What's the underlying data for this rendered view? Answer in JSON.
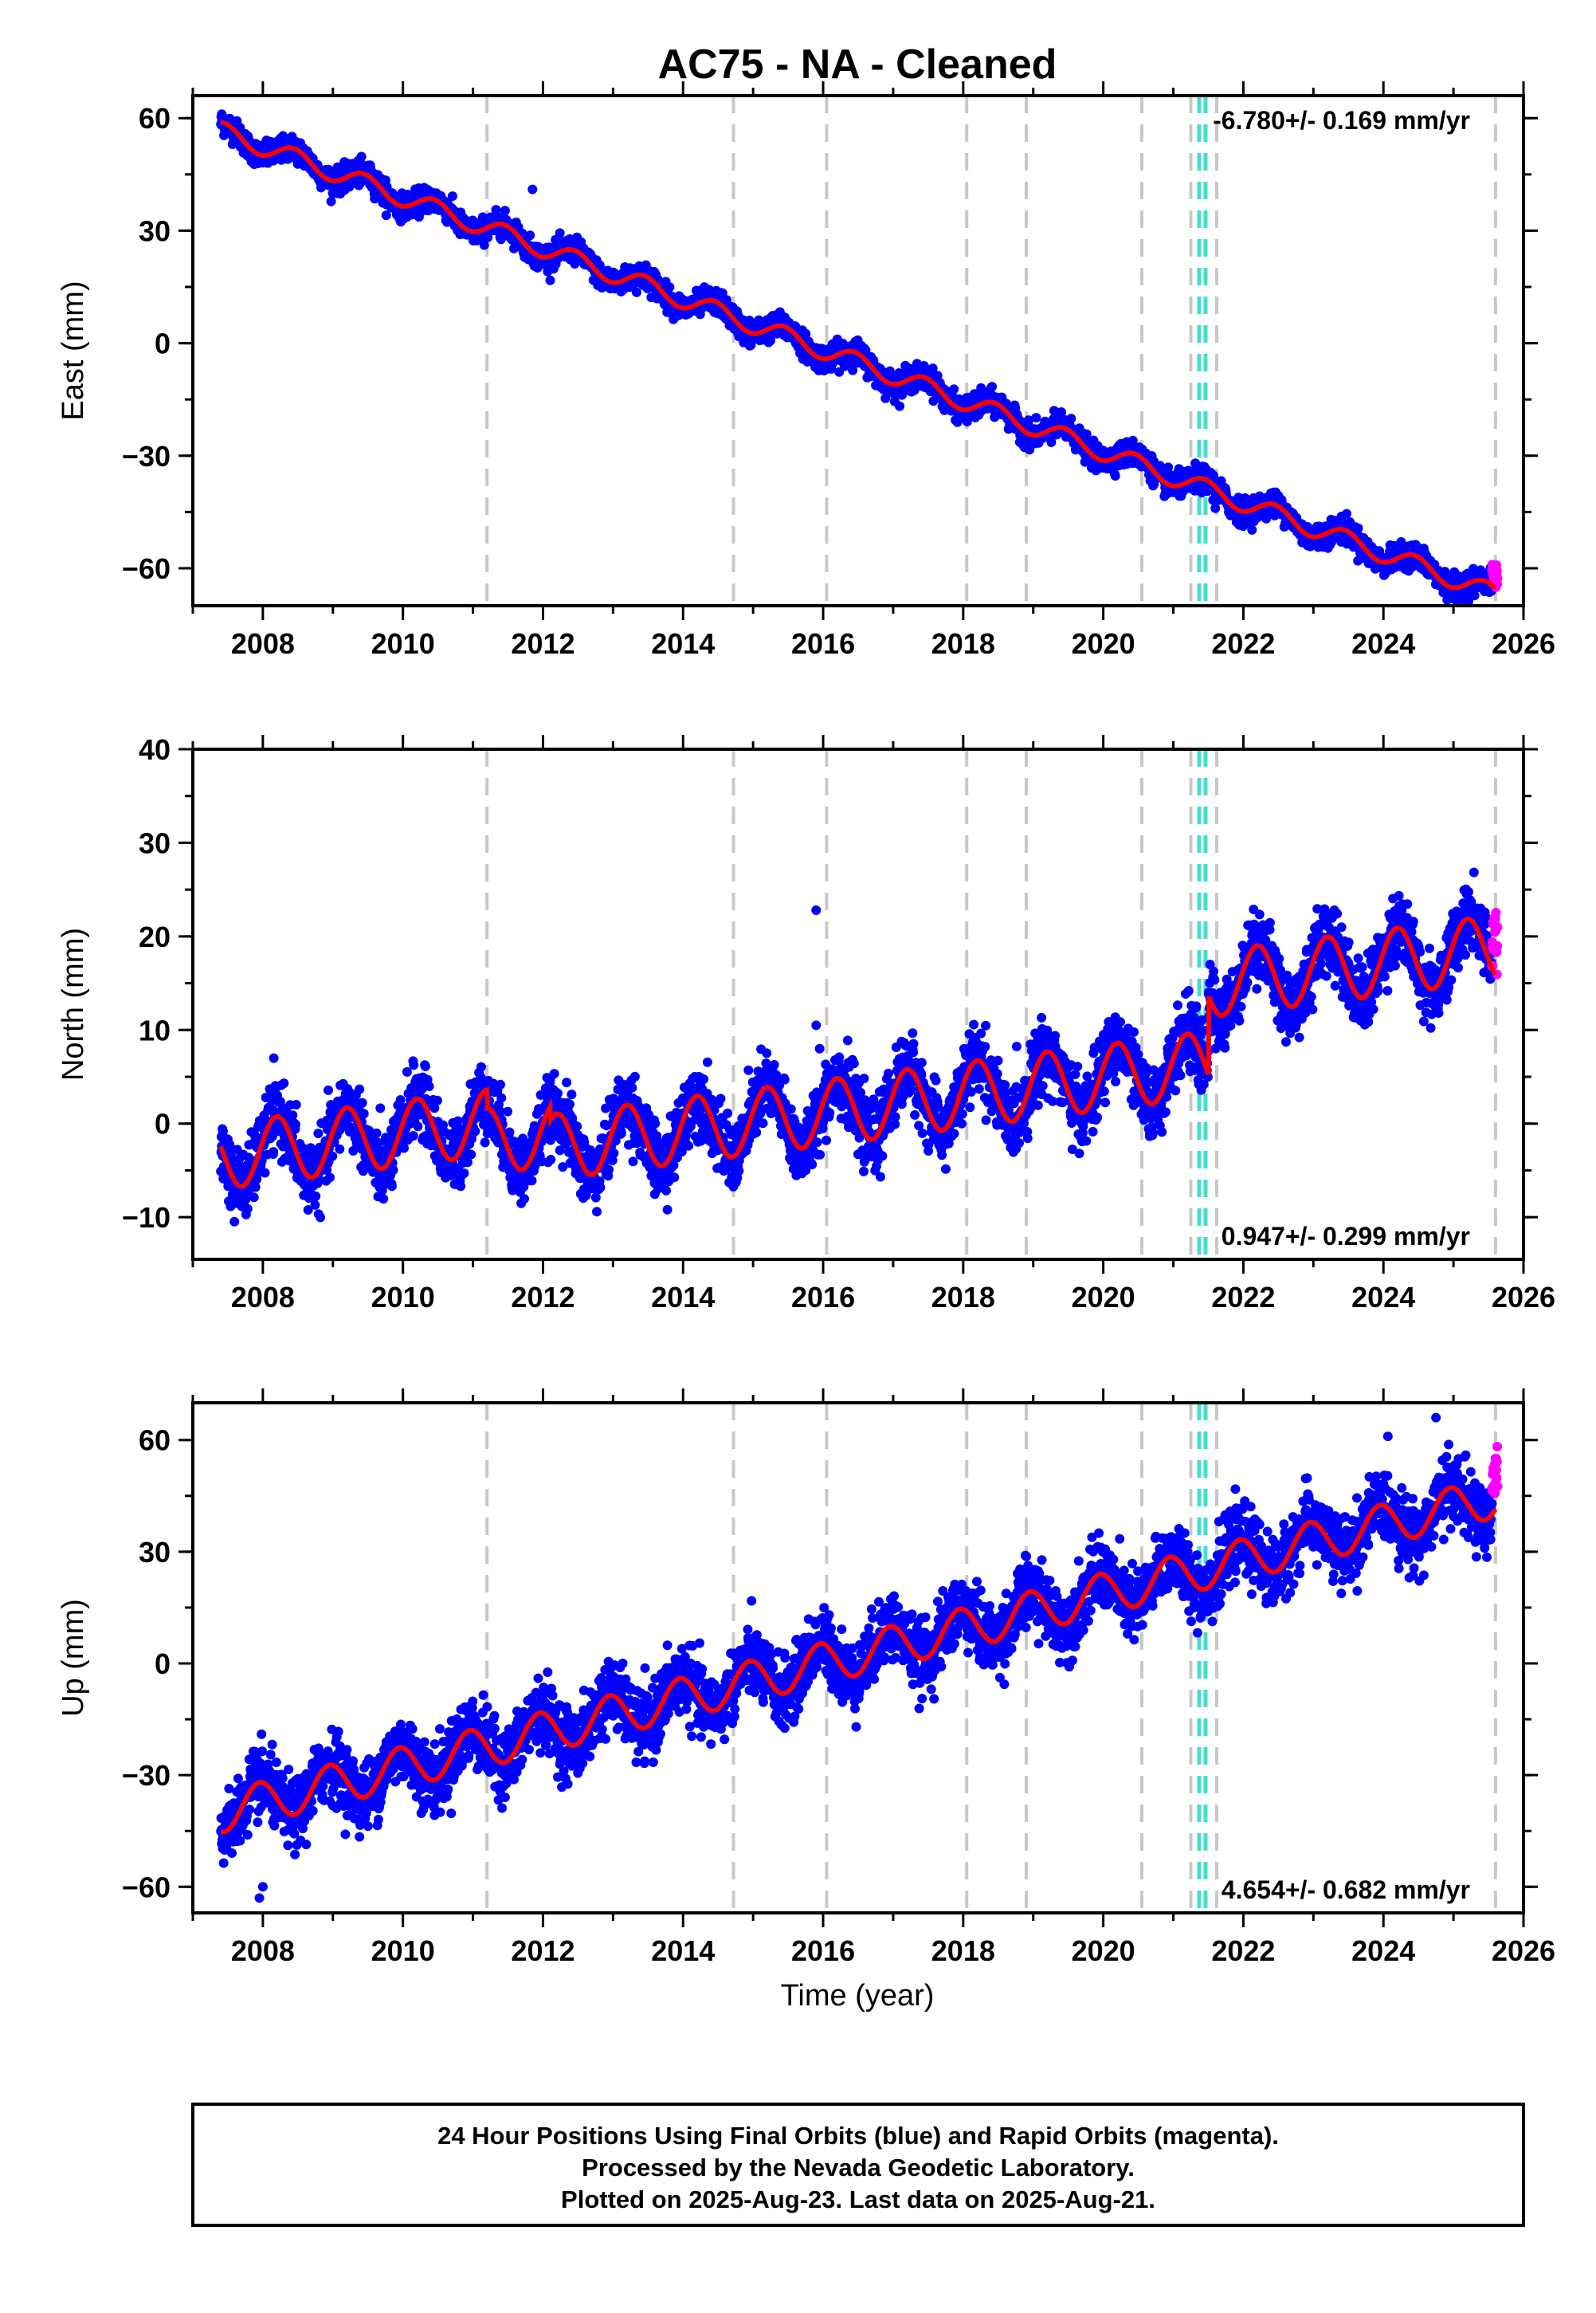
{
  "title": "AC75  - NA - Cleaned",
  "xlabel": "Time (year)",
  "caption": {
    "line1": "24 Hour Positions Using Final Orbits (blue) and Rapid Orbits (magenta).",
    "line2": "Processed by the Nevada Geodetic Laboratory.",
    "line3": "Plotted on 2025-Aug-23. Last data on 2025-Aug-21."
  },
  "colors": {
    "final": "#0000ff",
    "rapid": "#ff00ff",
    "model": "#ff0000",
    "event": "#c8c8c8",
    "antenna": "#40e0d0"
  },
  "chart_data": [
    {
      "type": "scatter",
      "panel": "east",
      "ylabel": "East (mm)",
      "xlim": [
        2007.0,
        2026.0
      ],
      "ylim": [
        -70,
        66
      ],
      "xticks": [
        2008,
        2010,
        2012,
        2014,
        2016,
        2018,
        2020,
        2022,
        2024,
        2026
      ],
      "yticks": [
        -60,
        -30,
        0,
        30,
        60
      ],
      "rate": "-6.780+/- 0.169 mm/yr",
      "rate_pos": "top-right",
      "data_start": 2007.4,
      "data_end": 2025.55,
      "rapid_start": 2025.55,
      "model": {
        "offset": 56.5,
        "slope": -6.78,
        "amp": 2.5,
        "phase": 0.2
      },
      "scatter_sigma": 1.6,
      "outliers": [
        {
          "x": 2011.85,
          "y": 41
        },
        {
          "x": 2021.6,
          "y": -44
        }
      ],
      "model_steps": [],
      "event_lines": [
        2011.2,
        2014.72,
        2016.05,
        2018.05,
        2018.9,
        2020.55,
        2021.25,
        2021.62,
        2025.6
      ],
      "antenna_lines": [
        2021.37,
        2021.46
      ]
    },
    {
      "type": "scatter",
      "panel": "north",
      "ylabel": "North (mm)",
      "xlim": [
        2007.0,
        2026.0
      ],
      "ylim": [
        -14.5,
        40
      ],
      "xticks": [
        2008,
        2010,
        2012,
        2014,
        2016,
        2018,
        2020,
        2022,
        2024,
        2026
      ],
      "yticks": [
        -10,
        0,
        10,
        20,
        30,
        40
      ],
      "rate": "0.947+/- 0.299 mm/yr",
      "rate_pos": "bottom-right",
      "data_start": 2007.4,
      "data_end": 2025.55,
      "rapid_start": 2025.55,
      "model": {
        "offset": -3.5,
        "slope": 0.947,
        "amp": 3.5,
        "phase": 0.45
      },
      "scatter_sigma": 1.8,
      "outliers": [
        {
          "x": 2015.9,
          "y": 22.8
        },
        {
          "x": 2015.9,
          "y": 10.5
        },
        {
          "x": 2015.95,
          "y": 8
        }
      ],
      "model_steps": [
        {
          "x": 2011.2,
          "dy": -2.0
        },
        {
          "x": 2012.1,
          "dy": -1.5
        },
        {
          "x": 2021.5,
          "dy": 8.5
        }
      ],
      "event_lines": [
        2011.2,
        2014.72,
        2016.05,
        2018.05,
        2018.9,
        2020.55,
        2021.25,
        2021.62,
        2025.6
      ],
      "antenna_lines": [
        2021.37,
        2021.46
      ]
    },
    {
      "type": "scatter",
      "panel": "up",
      "ylabel": "Up (mm)",
      "xlim": [
        2007.0,
        2026.0
      ],
      "ylim": [
        -67,
        70
      ],
      "xticks": [
        2008,
        2010,
        2012,
        2014,
        2016,
        2018,
        2020,
        2022,
        2024,
        2026
      ],
      "yticks": [
        -60,
        -30,
        0,
        30,
        60
      ],
      "rate": "4.654+/- 0.682 mm/yr",
      "rate_pos": "bottom-right",
      "data_start": 2007.4,
      "data_end": 2025.55,
      "rapid_start": 2025.55,
      "model": {
        "offset": -40,
        "slope": 4.654,
        "amp": 5.5,
        "phase": 0.7
      },
      "scatter_sigma": 4.5,
      "outliers": [
        {
          "x": 2007.95,
          "y": -63
        },
        {
          "x": 2008.0,
          "y": -60
        },
        {
          "x": 2024.75,
          "y": 66
        }
      ],
      "model_steps": [],
      "event_lines": [
        2011.2,
        2014.72,
        2016.05,
        2018.05,
        2018.9,
        2020.55,
        2021.25,
        2021.62,
        2025.6
      ],
      "antenna_lines": [
        2021.37,
        2021.46
      ]
    }
  ]
}
